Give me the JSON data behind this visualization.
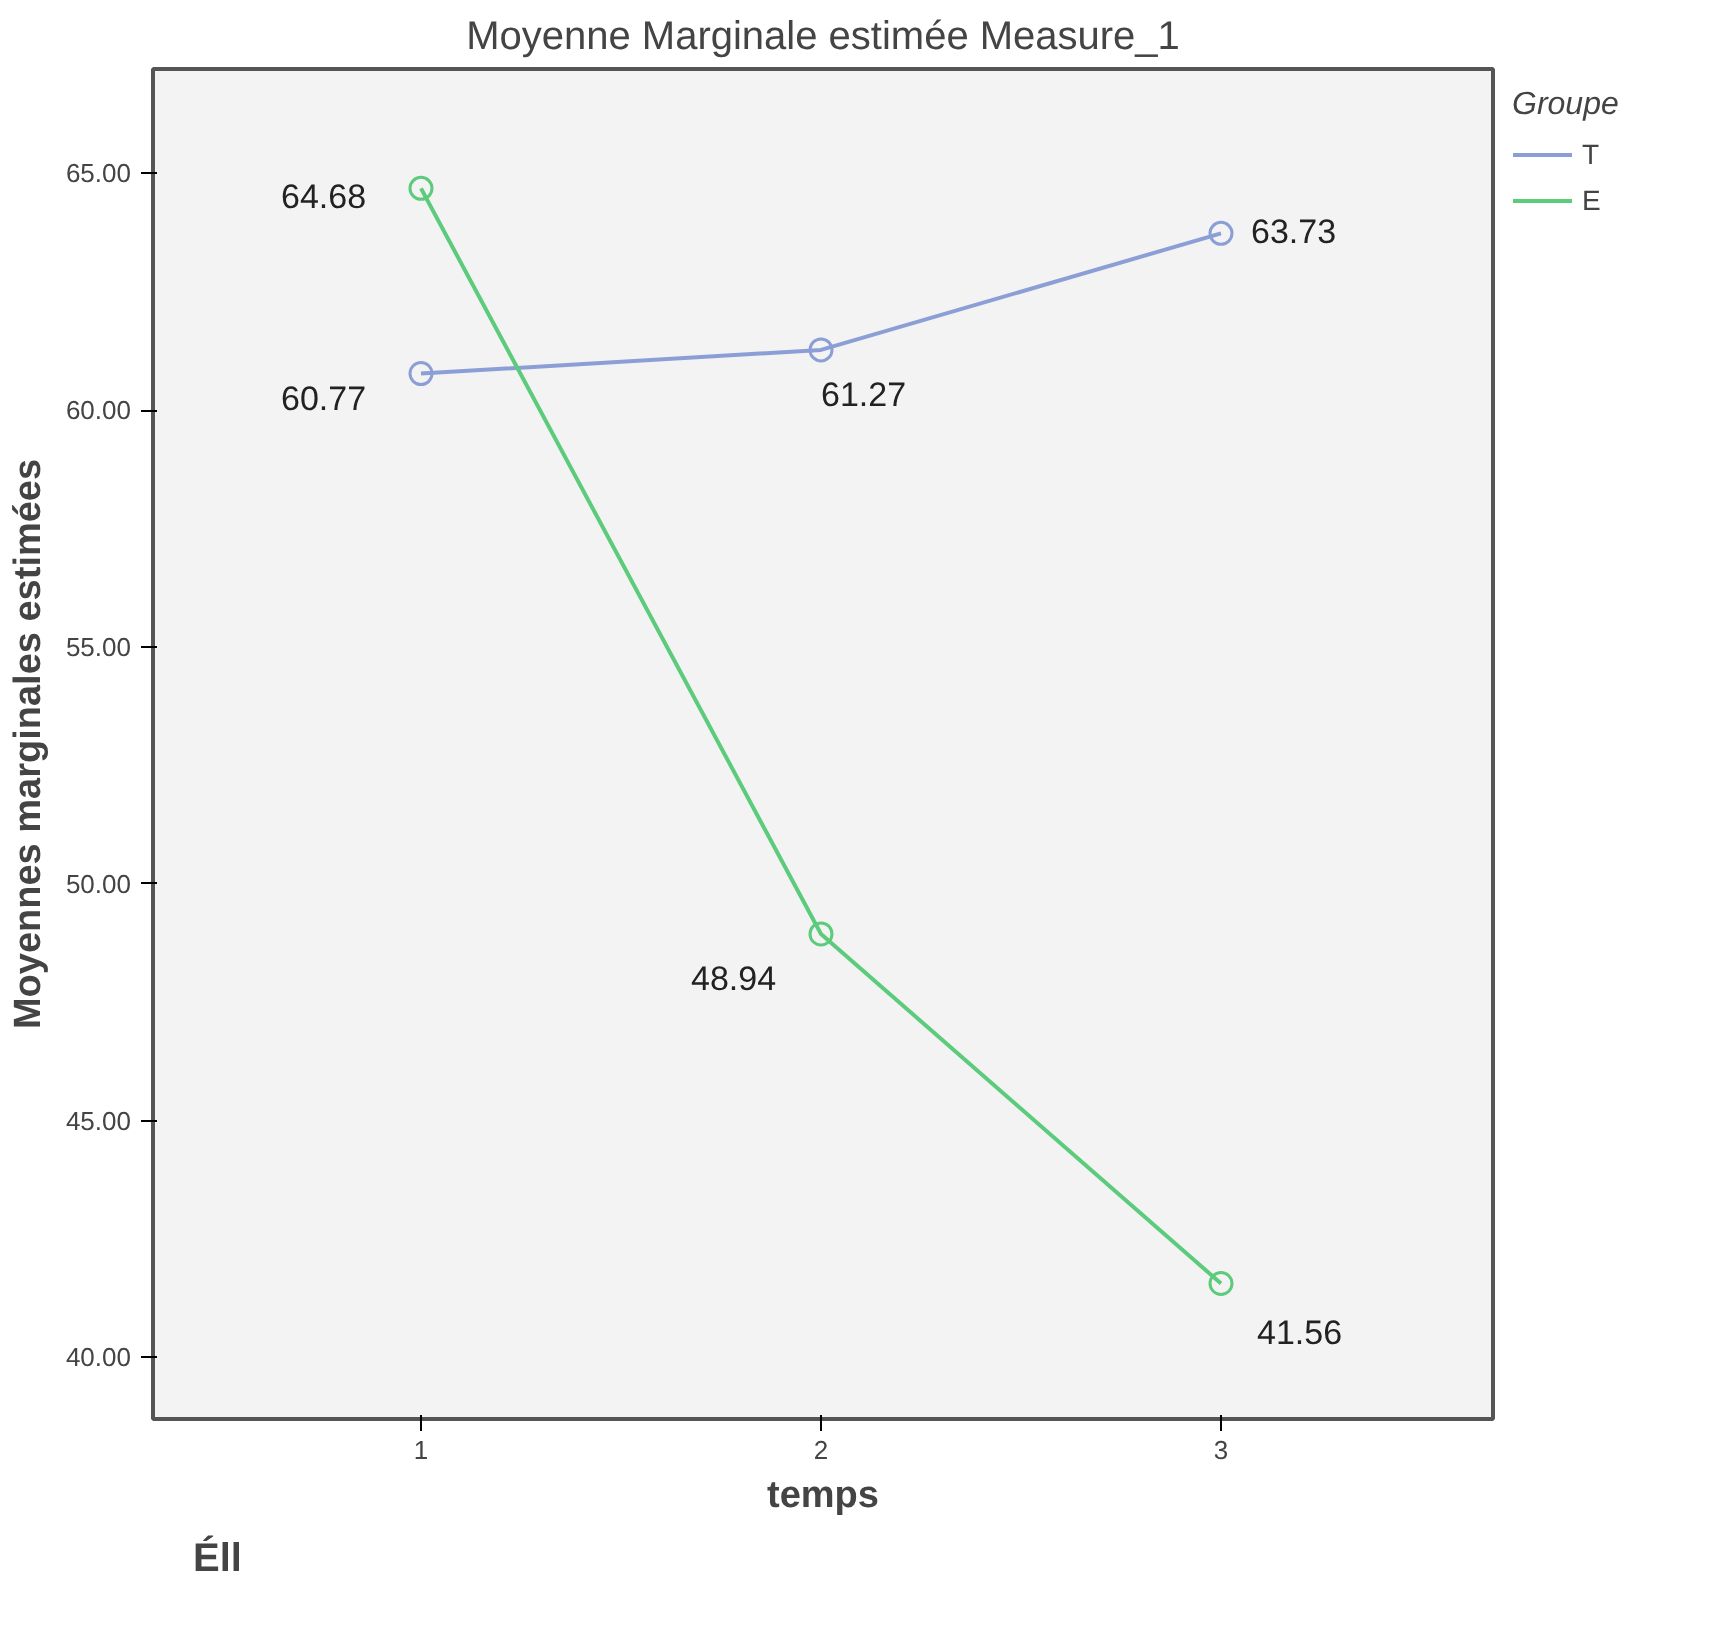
{
  "chart_data": {
    "type": "line",
    "title": "Moyenne Marginale estimée Measure_1",
    "xlabel": "temps",
    "ylabel": "Moyennes marginales estimées",
    "legend_title": "Groupe",
    "categories": [
      "1",
      "2",
      "3"
    ],
    "series": [
      {
        "name": "T",
        "color": "#8c9ed6",
        "values": [
          60.77,
          61.27,
          63.73
        ]
      },
      {
        "name": "E",
        "color": "#5ccb7c",
        "values": [
          64.68,
          48.94,
          41.56
        ]
      }
    ],
    "ylim": [
      38.7,
      67.2
    ],
    "yticks": [
      {
        "value": 40,
        "label": "40.00"
      },
      {
        "value": 45,
        "label": "45.00"
      },
      {
        "value": 50,
        "label": "50.00"
      },
      {
        "value": 55,
        "label": "55.00"
      },
      {
        "value": 60,
        "label": "60.00"
      },
      {
        "value": 65,
        "label": "65.00"
      }
    ],
    "data_labels": true,
    "marker": "circle",
    "line_style": "solid",
    "grid": false,
    "legend": "right",
    "annotations": [
      "Éll"
    ]
  }
}
